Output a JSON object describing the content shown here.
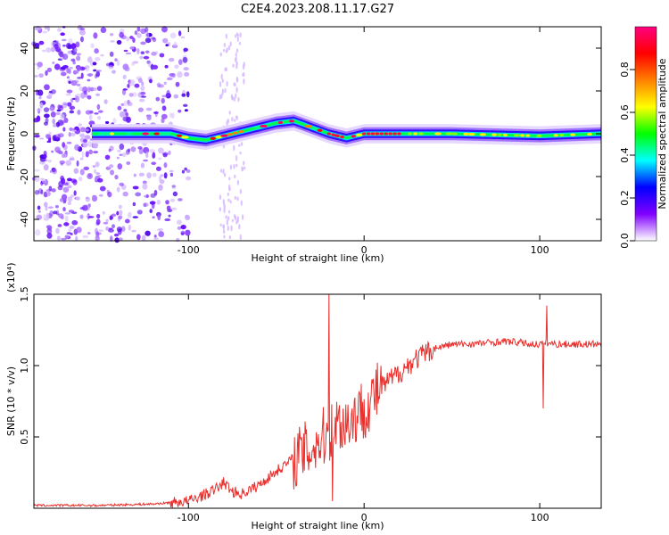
{
  "title": "C2E4.2023.208.11.17.G27",
  "chart_data": [
    {
      "type": "heatmap",
      "xlabel": "Height of straight line (km)",
      "ylabel": "Frequency (Hz)",
      "xlim": [
        -188,
        135
      ],
      "ylim": [
        -50,
        50
      ],
      "xticks": [
        -100,
        0,
        100
      ],
      "yticks": [
        -40,
        -20,
        0,
        20,
        40
      ],
      "colorbar": {
        "label": "Normalized spectral amplitude",
        "range": [
          0,
          1
        ],
        "ticks": [
          "0.0",
          "0.2",
          "0.4",
          "0.6",
          "0.8"
        ],
        "colormap": [
          "#ffffff",
          "#8000ff",
          "#0000ff",
          "#00ffff",
          "#00ff00",
          "#ffff00",
          "#ff8000",
          "#ff0000",
          "#ff0080"
        ]
      },
      "ridge": {
        "x": [
          -155,
          -130,
          -110,
          -100,
          -90,
          -80,
          -70,
          -60,
          -50,
          -40,
          -30,
          -20,
          -10,
          0,
          20,
          50,
          100,
          135
        ],
        "freq": [
          0,
          0,
          0,
          -2,
          -3,
          -1,
          1,
          3,
          5,
          6,
          3,
          0,
          -2,
          0,
          0,
          0,
          -1,
          0
        ]
      }
    },
    {
      "type": "line",
      "xlabel": "Height of straight line (km)",
      "ylabel": "SNR (10 * v/v)",
      "y_multiplier": "(x10⁴)",
      "xlim": [
        -188,
        135
      ],
      "ylim": [
        0,
        1.5
      ],
      "xticks": [
        -100,
        0,
        100
      ],
      "yticks": [
        "0.5",
        "1.0",
        "1.5"
      ],
      "color": "#e8302d",
      "x": [
        -188,
        -150,
        -120,
        -100,
        -90,
        -85,
        -80,
        -75,
        -70,
        -60,
        -50,
        -40,
        -30,
        -25,
        -20,
        -15,
        -10,
        -5,
        0,
        10,
        20,
        30,
        40,
        50,
        60,
        70,
        80,
        90,
        95,
        100,
        103,
        110,
        120,
        135
      ],
      "y": [
        0.02,
        0.02,
        0.03,
        0.05,
        0.1,
        0.13,
        0.18,
        0.12,
        0.1,
        0.16,
        0.26,
        0.35,
        0.42,
        0.48,
        0.52,
        0.6,
        0.6,
        0.65,
        0.7,
        0.85,
        0.95,
        1.05,
        1.12,
        1.15,
        1.15,
        1.16,
        1.17,
        1.16,
        1.15,
        1.15,
        1.16,
        1.15,
        1.15,
        1.15
      ],
      "spikes": [
        {
          "x": -20,
          "y": 1.5
        },
        {
          "x": -18,
          "y": 0.05
        },
        {
          "x": 102,
          "y": 0.7
        },
        {
          "x": 104,
          "y": 1.42
        }
      ]
    }
  ]
}
